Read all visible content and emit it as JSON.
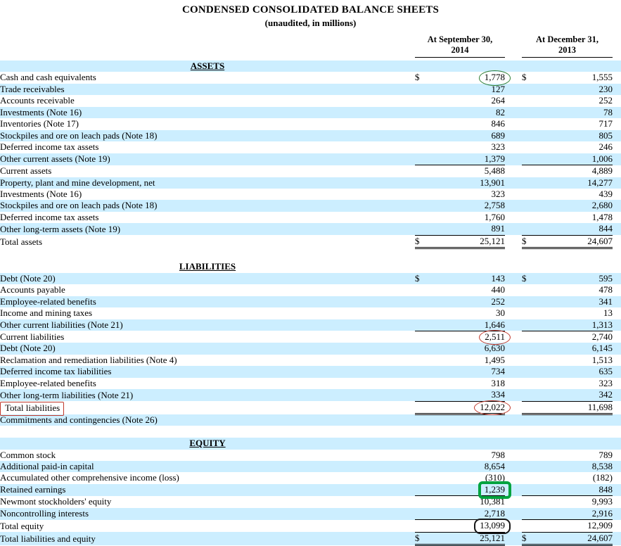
{
  "title": {
    "line1": "CONDENSED CONSOLIDATED BALANCE SHEETS",
    "line2": "(unaudited, in millions)"
  },
  "currency_symbol": "$",
  "columns": [
    {
      "line1": "At September 30,",
      "line2": "2014"
    },
    {
      "line1": "At December 31,",
      "line2": "2013"
    }
  ],
  "colors": {
    "row_stripe": "#cceeff",
    "annotation_red": "#c0392b",
    "annotation_green_circle": "#2e7d32",
    "annotation_green_box": "#00a33e",
    "annotation_black_box": "#141414"
  },
  "sections": [
    {
      "header": "ASSETS",
      "shaded_header": true,
      "rows": [
        {
          "label": "Cash and cash equivalents",
          "dollar": true,
          "v1": "1,778",
          "v2": "1,555",
          "shade": false,
          "ann_v1": "ellipse-green"
        },
        {
          "label": "Trade receivables",
          "v1": "127",
          "v2": "230",
          "shade": true
        },
        {
          "label": "Accounts receivable",
          "v1": "264",
          "v2": "252",
          "shade": false
        },
        {
          "label": "Investments (Note 16)",
          "v1": "82",
          "v2": "78",
          "shade": true
        },
        {
          "label": "Inventories (Note 17)",
          "v1": "846",
          "v2": "717",
          "shade": false
        },
        {
          "label": "Stockpiles and ore on leach pads (Note 18)",
          "v1": "689",
          "v2": "805",
          "shade": true
        },
        {
          "label": "Deferred income tax assets",
          "v1": "323",
          "v2": "246",
          "shade": false
        },
        {
          "label": "Other current assets (Note 19)",
          "v1": "1,379",
          "v2": "1,006",
          "shade": true,
          "rule": "single"
        },
        {
          "label": "Current assets",
          "indent": 1,
          "v1": "5,488",
          "v2": "4,889",
          "shade": false
        },
        {
          "label": "Property, plant and mine development, net",
          "v1": "13,901",
          "v2": "14,277",
          "shade": true
        },
        {
          "label": "Investments (Note 16)",
          "v1": "323",
          "v2": "439",
          "shade": false
        },
        {
          "label": "Stockpiles and ore on leach pads (Note 18)",
          "v1": "2,758",
          "v2": "2,680",
          "shade": true
        },
        {
          "label": "Deferred income tax assets",
          "v1": "1,760",
          "v2": "1,478",
          "shade": false
        },
        {
          "label": "Other long-term assets (Note 19)",
          "v1": "891",
          "v2": "844",
          "shade": true,
          "rule": "single"
        },
        {
          "label": "Total assets",
          "indent": 1,
          "dollar": true,
          "v1": "25,121",
          "v2": "24,607",
          "shade": false,
          "rule": "double"
        }
      ]
    },
    {
      "header": "LIABILITIES",
      "shaded_header": false,
      "rows": [
        {
          "label": "Debt (Note 20)",
          "dollar": true,
          "v1": "143",
          "v2": "595",
          "shade": true
        },
        {
          "label": "Accounts payable",
          "v1": "440",
          "v2": "478",
          "shade": false
        },
        {
          "label": "Employee-related benefits",
          "v1": "252",
          "v2": "341",
          "shade": true
        },
        {
          "label": "Income and mining taxes",
          "v1": "30",
          "v2": "13",
          "shade": false
        },
        {
          "label": "Other current liabilities (Note 21)",
          "v1": "1,646",
          "v2": "1,313",
          "shade": true,
          "rule": "single"
        },
        {
          "label": "Current liabilities",
          "indent": 1,
          "v1": "2,511",
          "v2": "2,740",
          "shade": false,
          "ann_v1": "ellipse-red"
        },
        {
          "label": "Debt (Note 20)",
          "v1": "6,630",
          "v2": "6,145",
          "shade": true
        },
        {
          "label": "Reclamation and remediation liabilities (Note 4)",
          "v1": "1,495",
          "v2": "1,513",
          "shade": false
        },
        {
          "label": "Deferred income tax liabilities",
          "v1": "734",
          "v2": "635",
          "shade": true
        },
        {
          "label": "Employee-related benefits",
          "v1": "318",
          "v2": "323",
          "shade": false
        },
        {
          "label": "Other long-term liabilities (Note 21)",
          "v1": "334",
          "v2": "342",
          "shade": true,
          "rule": "single"
        },
        {
          "label": "Total liabilities",
          "v1": "12,022",
          "v2": "11,698",
          "shade": false,
          "rule": "double",
          "ann_label": "rect-red",
          "ann_v1": "ellipse-red"
        },
        {
          "label": "Commitments and contingencies (Note 26)",
          "v1": "",
          "v2": "",
          "shade": true
        }
      ]
    },
    {
      "header": "EQUITY",
      "shaded_header": true,
      "rows": [
        {
          "label": "Common stock",
          "v1": "798",
          "v2": "789",
          "shade": false
        },
        {
          "label": "Additional paid-in capital",
          "v1": "8,654",
          "v2": "8,538",
          "shade": true
        },
        {
          "label": "Accumulated other comprehensive income (loss)",
          "v1": "(310)",
          "v2": "(182)",
          "shade": false
        },
        {
          "label": "Retained earnings",
          "v1": "1,239",
          "v2": "848",
          "shade": true,
          "rule": "single",
          "ann_v1": "rect-green"
        },
        {
          "label": "Newmont stockholders' equity",
          "v1": "10,381",
          "v2": "9,993",
          "shade": false
        },
        {
          "label": "Noncontrolling interests",
          "v1": "2,718",
          "v2": "2,916",
          "shade": true,
          "rule": "single"
        },
        {
          "label": "Total equity",
          "indent": 1,
          "v1": "13,099",
          "v2": "12,909",
          "shade": false,
          "rule": "single",
          "ann_v1": "rect-black"
        },
        {
          "label": "Total liabilities and equity",
          "indent": 1,
          "dollar": true,
          "v1": "25,121",
          "v2": "24,607",
          "shade": true,
          "rule": "double"
        }
      ]
    }
  ]
}
